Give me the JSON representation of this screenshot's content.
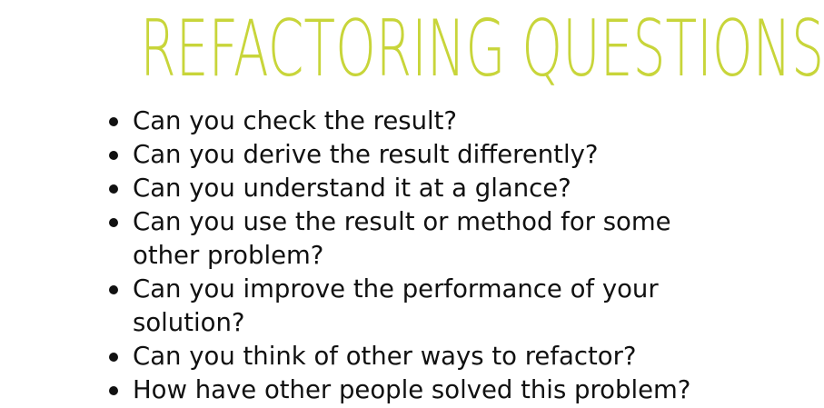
{
  "slide": {
    "title": "REFACTORING QUESTIONS",
    "title_color": "#c8d53a",
    "text_color": "#111111",
    "bullets": [
      "Can you check the result?",
      "Can you derive the result differently?",
      "Can you understand it at a glance?",
      "Can you use the result or method for some other problem?",
      "Can you improve the performance of your solution?",
      "Can you think of other ways to refactor?",
      "How have other people solved this problem?"
    ]
  }
}
